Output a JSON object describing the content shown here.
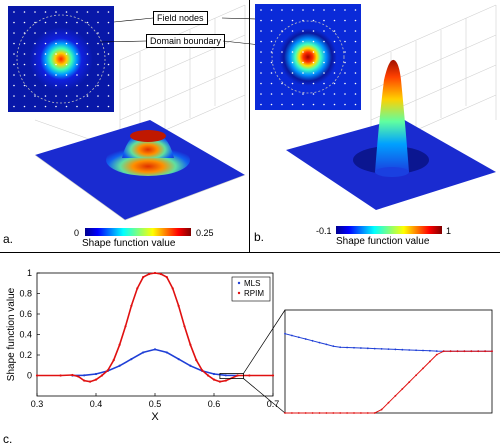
{
  "panels": {
    "a_label": "a.",
    "b_label": "b.",
    "c_label": "c."
  },
  "callouts": {
    "field_nodes": "Field nodes",
    "domain_boundary": "Domain boundary"
  },
  "colorbars": {
    "a": {
      "min": "0",
      "max": "0.25",
      "label": "Shape function value"
    },
    "b": {
      "min": "-0.1",
      "max": "1",
      "label": "Shape function value"
    }
  },
  "chart_data": {
    "type": "line",
    "xlabel": "X",
    "ylabel": "Shape function value",
    "xlim": [
      0.3,
      0.7
    ],
    "ylim": [
      -0.2,
      1.0
    ],
    "xticks": [
      "0.3",
      "0.4",
      "0.5",
      "0.6",
      "0.7"
    ],
    "yticks": [
      "0",
      "0.2",
      "0.4",
      "0.6",
      "0.8",
      "1"
    ],
    "legend_position": "top-right",
    "series": [
      {
        "name": "MLS",
        "color": "#1f3fd6",
        "x": [
          0.36,
          0.38,
          0.4,
          0.42,
          0.44,
          0.46,
          0.48,
          0.5,
          0.52,
          0.54,
          0.56,
          0.58,
          0.6,
          0.62,
          0.64
        ],
        "y": [
          0.0,
          0.002,
          0.015,
          0.045,
          0.095,
          0.16,
          0.225,
          0.255,
          0.225,
          0.16,
          0.095,
          0.045,
          0.015,
          0.002,
          0.0
        ]
      },
      {
        "name": "RPIM",
        "color": "#e01010",
        "x": [
          0.3,
          0.34,
          0.36,
          0.37,
          0.38,
          0.39,
          0.4,
          0.41,
          0.42,
          0.43,
          0.44,
          0.45,
          0.46,
          0.47,
          0.48,
          0.49,
          0.5,
          0.51,
          0.52,
          0.53,
          0.54,
          0.55,
          0.56,
          0.57,
          0.58,
          0.59,
          0.6,
          0.61,
          0.62,
          0.64,
          0.66,
          0.7
        ],
        "y": [
          0.0,
          0.0,
          0.005,
          -0.01,
          -0.05,
          -0.06,
          -0.04,
          0.0,
          0.05,
          0.15,
          0.3,
          0.48,
          0.68,
          0.85,
          0.96,
          0.99,
          1.0,
          0.99,
          0.96,
          0.85,
          0.68,
          0.48,
          0.3,
          0.15,
          0.05,
          0.0,
          -0.04,
          -0.06,
          -0.05,
          0.0,
          0.0,
          0.0
        ]
      }
    ],
    "inset": {
      "xlim": [
        0.61,
        0.65
      ],
      "ylim": [
        -0.03,
        0.02
      ]
    }
  }
}
